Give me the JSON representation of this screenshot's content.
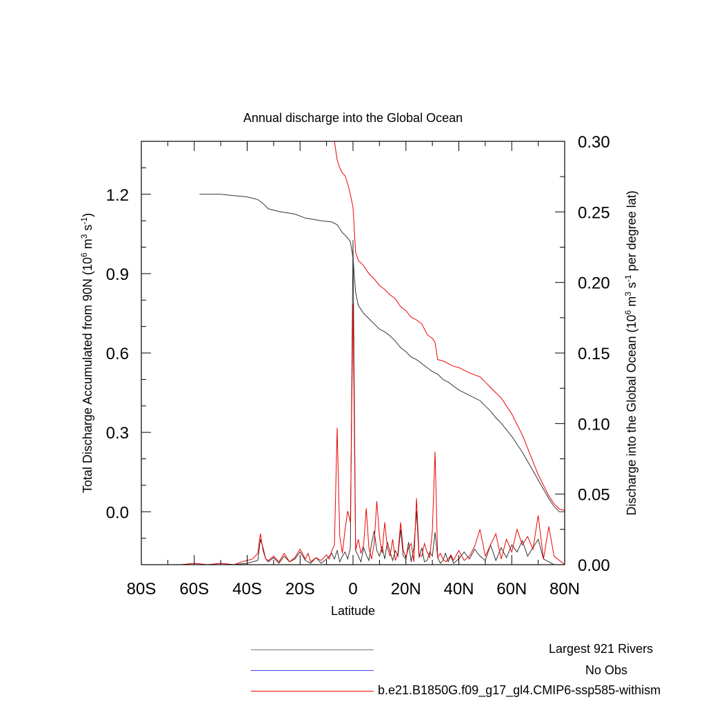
{
  "chart_data": {
    "type": "line",
    "title": "Annual discharge into the Global Ocean",
    "xlabel": "Latitude",
    "ylabel_left": "Total Discharge Accumulated from 90N (10^6 m^3 s^-1)",
    "ylabel_right": "Discharge into the Global Ocean (10^6 m^3 s^-1 per degree lat)",
    "xlim": [
      -80,
      80
    ],
    "ylim_left": [
      -0.2,
      1.4
    ],
    "ylim_right": [
      0.0,
      0.3
    ],
    "x_ticks": [
      -80,
      -60,
      -40,
      -20,
      0,
      20,
      40,
      60,
      80
    ],
    "x_tick_labels": [
      "80S",
      "60S",
      "40S",
      "20S",
      "0",
      "20N",
      "40N",
      "60N",
      "80N"
    ],
    "y_left_ticks": [
      1.2,
      0.9,
      0.6,
      0.3,
      0.0
    ],
    "y_left_tick_labels": [
      "1.2",
      "0.9",
      "0.6",
      "0.3",
      "0.0"
    ],
    "y_right_ticks": [
      0.3,
      0.25,
      0.2,
      0.15,
      0.1,
      0.05,
      0.0
    ],
    "y_right_tick_labels": [
      "0.30",
      "0.25",
      "0.20",
      "0.15",
      "0.10",
      "0.05",
      "0.00"
    ],
    "grid": false,
    "legend_position": "bottom",
    "legend": [
      {
        "label": "Largest 921 Rivers",
        "color": "#333333"
      },
      {
        "label": "No Obs",
        "color": "#3344ff"
      },
      {
        "label": "b.e21.B1850G.f09_g17_gl4.CMIP6-ssp585-withism",
        "color": "#ee0000"
      }
    ],
    "series_cumulative": [
      {
        "name": "Largest 921 Rivers",
        "axis": "left",
        "color": "#333333",
        "x": [
          -58,
          -50,
          -45,
          -40,
          -36,
          -34,
          -32,
          -28,
          -22,
          -18,
          -12,
          -8,
          -6,
          -5,
          -4,
          -3,
          -2,
          -1,
          0,
          1,
          2,
          4,
          6,
          8,
          10,
          12,
          14,
          16,
          18,
          20,
          22,
          24,
          26,
          28,
          30,
          32,
          34,
          36,
          38,
          40,
          44,
          48,
          50,
          52,
          54,
          56,
          58,
          60,
          62,
          64,
          66,
          68,
          70,
          72,
          74,
          76,
          78,
          80
        ],
        "y": [
          1.2,
          1.2,
          1.195,
          1.19,
          1.18,
          1.165,
          1.145,
          1.135,
          1.125,
          1.11,
          1.1,
          1.095,
          1.085,
          1.07,
          1.055,
          1.045,
          1.035,
          1.02,
          0.96,
          0.83,
          0.78,
          0.75,
          0.73,
          0.71,
          0.69,
          0.68,
          0.665,
          0.645,
          0.62,
          0.605,
          0.585,
          0.575,
          0.56,
          0.545,
          0.53,
          0.52,
          0.5,
          0.49,
          0.475,
          0.46,
          0.44,
          0.42,
          0.4,
          0.38,
          0.355,
          0.335,
          0.31,
          0.285,
          0.255,
          0.225,
          0.19,
          0.155,
          0.12,
          0.085,
          0.05,
          0.02,
          0.0,
          0.0
        ]
      },
      {
        "name": "b.e21.B1850G.f09_g17_gl4.CMIP6-ssp585-withism",
        "axis": "left",
        "color": "#ee0000",
        "x": [
          -7,
          -6,
          -5,
          -4,
          -3,
          -2,
          -1,
          0,
          1,
          2,
          4,
          6,
          8,
          10,
          12,
          14,
          16,
          18,
          20,
          22,
          24,
          26,
          28,
          30,
          31,
          32,
          34,
          36,
          38,
          40,
          44,
          48,
          50,
          52,
          54,
          56,
          58,
          60,
          62,
          64,
          66,
          68,
          70,
          72,
          74,
          76,
          78,
          80
        ],
        "y": [
          1.4,
          1.33,
          1.3,
          1.28,
          1.27,
          1.24,
          1.2,
          1.15,
          0.98,
          0.95,
          0.93,
          0.9,
          0.88,
          0.855,
          0.84,
          0.82,
          0.805,
          0.775,
          0.76,
          0.735,
          0.725,
          0.71,
          0.67,
          0.655,
          0.64,
          0.575,
          0.57,
          0.56,
          0.55,
          0.545,
          0.525,
          0.51,
          0.49,
          0.47,
          0.45,
          0.43,
          0.4,
          0.37,
          0.33,
          0.29,
          0.24,
          0.19,
          0.14,
          0.1,
          0.06,
          0.03,
          0.01,
          0.005
        ]
      }
    ],
    "series_per_degree": [
      {
        "name": "Largest 921 Rivers",
        "axis": "right",
        "color": "#333333",
        "x": [
          -80,
          -60,
          -45,
          -40,
          -36,
          -35,
          -34,
          -33,
          -32,
          -30,
          -28,
          -26,
          -24,
          -22,
          -20,
          -18,
          -16,
          -14,
          -12,
          -10,
          -8,
          -7,
          -6,
          -5,
          -4,
          -3,
          -2,
          -1,
          0,
          1,
          2,
          3,
          4,
          5,
          6,
          7,
          8,
          9,
          10,
          11,
          12,
          13,
          14,
          15,
          16,
          17,
          18,
          19,
          20,
          21,
          22,
          23,
          24,
          25,
          26,
          27,
          28,
          29,
          30,
          31,
          32,
          33,
          34,
          35,
          36,
          37,
          38,
          40,
          42,
          44,
          46,
          48,
          50,
          52,
          54,
          56,
          58,
          60,
          62,
          64,
          66,
          68,
          70,
          72,
          74,
          76,
          80
        ],
        "y": [
          0.0,
          0.0,
          0.0,
          0.001,
          0.003,
          0.018,
          0.012,
          0.004,
          0.002,
          0.005,
          0.001,
          0.006,
          0.002,
          0.004,
          0.009,
          0.003,
          0.001,
          0.005,
          0.001,
          0.004,
          0.008,
          0.004,
          0.01,
          0.002,
          0.006,
          0.009,
          0.004,
          0.012,
          0.23,
          0.01,
          0.006,
          0.002,
          0.012,
          0.007,
          0.003,
          0.015,
          0.024,
          0.01,
          0.006,
          0.013,
          0.004,
          0.016,
          0.009,
          0.003,
          0.01,
          0.006,
          0.025,
          0.006,
          0.004,
          0.016,
          0.002,
          0.012,
          0.038,
          0.005,
          0.012,
          0.002,
          0.003,
          0.009,
          0.006,
          0.023,
          0.005,
          0.001,
          0.003,
          0.008,
          0.002,
          0.006,
          0.001,
          0.004,
          0.009,
          0.004,
          0.011,
          0.006,
          0.003,
          0.014,
          0.003,
          0.012,
          0.005,
          0.014,
          0.009,
          0.017,
          0.006,
          0.012,
          0.018,
          0.004,
          0.002,
          0.0,
          0.0
        ]
      },
      {
        "name": "b.e21.B1850G.f09_g17_gl4.CMIP6-ssp585-withism",
        "axis": "right",
        "color": "#ee0000",
        "x": [
          -80,
          -65,
          -60,
          -55,
          -50,
          -45,
          -42,
          -40,
          -38,
          -36,
          -35,
          -34,
          -33,
          -32,
          -30,
          -28,
          -26,
          -24,
          -22,
          -20,
          -18,
          -17,
          -16,
          -14,
          -12,
          -10,
          -9,
          -8,
          -7,
          -6,
          -5,
          -4,
          -3,
          -2,
          -1,
          0,
          1,
          2,
          3,
          4,
          5,
          6,
          7,
          8,
          9,
          10,
          11,
          12,
          13,
          14,
          15,
          16,
          17,
          18,
          19,
          20,
          21,
          22,
          23,
          24,
          25,
          26,
          27,
          28,
          29,
          30,
          31,
          32,
          33,
          34,
          35,
          36,
          37,
          38,
          40,
          42,
          44,
          46,
          48,
          50,
          52,
          54,
          56,
          58,
          60,
          62,
          64,
          66,
          68,
          70,
          72,
          74,
          76,
          80
        ],
        "y": [
          0.0,
          0.0,
          0.001,
          0.0,
          0.001,
          0.0,
          0.002,
          0.003,
          0.004,
          0.008,
          0.022,
          0.01,
          0.004,
          0.003,
          0.006,
          0.002,
          0.008,
          0.002,
          0.005,
          0.011,
          0.004,
          0.008,
          0.002,
          0.005,
          0.003,
          0.007,
          0.004,
          0.01,
          0.014,
          0.097,
          0.02,
          0.008,
          0.025,
          0.038,
          0.03,
          0.185,
          0.01,
          0.018,
          0.008,
          0.014,
          0.04,
          0.012,
          0.004,
          0.015,
          0.045,
          0.02,
          0.008,
          0.03,
          0.012,
          0.006,
          0.018,
          0.003,
          0.008,
          0.03,
          0.01,
          0.005,
          0.012,
          0.015,
          0.002,
          0.047,
          0.007,
          0.006,
          0.015,
          0.009,
          0.005,
          0.024,
          0.08,
          0.005,
          0.008,
          0.004,
          0.002,
          0.004,
          0.007,
          0.003,
          0.01,
          0.003,
          0.006,
          0.013,
          0.025,
          0.006,
          0.014,
          0.022,
          0.004,
          0.018,
          0.009,
          0.025,
          0.014,
          0.02,
          0.011,
          0.035,
          0.004,
          0.027,
          0.006,
          0.0
        ]
      }
    ]
  }
}
